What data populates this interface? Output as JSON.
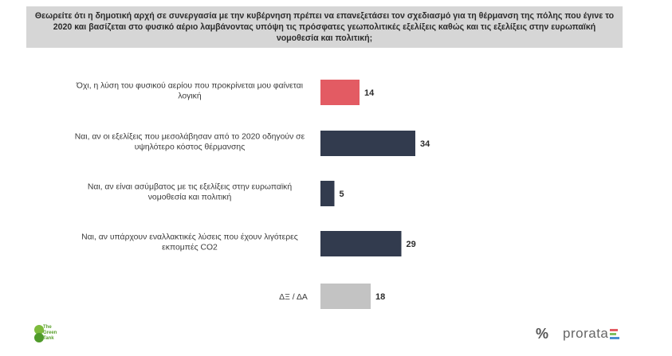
{
  "question": "Θεωρείτε ότι η δημοτική αρχή σε συνεργασία με την κυβέρνηση πρέπει να επανεξετάσει τον σχεδιασμό για τη θέρμανση της πόλης που έγινε το 2020 και βασίζεται στο φυσικό αέριο λαμβάνοντας υπόψη τις πρόσφατες γεωπολιτικές εξελίξεις καθώς και τις εξελίξεις στην ευρωπαϊκή νομοθεσία και πολιτική;",
  "chart_data": {
    "type": "bar",
    "orientation": "horizontal",
    "categories": [
      [
        "Όχι, η λύση του φυσικού αερίου που προκρίνεται μου φαίνεται",
        "λογική"
      ],
      [
        "Ναι, αν οι εξελίξεις που μεσολάβησαν από το 2020 οδηγούν σε",
        "υψηλότερο κόστος θέρμανσης"
      ],
      [
        "Ναι, αν είναι ασύμβατος με τις εξελίξεις στην ευρωπαϊκή",
        "νομοθεσία και πολιτική"
      ],
      [
        "Ναι, αν υπάρχουν εναλλακτικές λύσεις που έχουν λιγότερες",
        "εκπομπές CO2"
      ],
      [
        "ΔΞ / ΔΑ"
      ]
    ],
    "values": [
      14,
      34,
      5,
      29,
      18
    ],
    "colors": [
      "#e35b63",
      "#323b4e",
      "#323b4e",
      "#323b4e",
      "#c3c3c3"
    ],
    "xlim": [
      0,
      40
    ],
    "grid": false,
    "legend": "none"
  },
  "logos": {
    "left_text": "The Green Tank",
    "right_symbol": "%",
    "right_text": "prorata",
    "right_bar_colors": [
      "#e35b63",
      "#7fbf5f",
      "#4a8fd0"
    ]
  }
}
